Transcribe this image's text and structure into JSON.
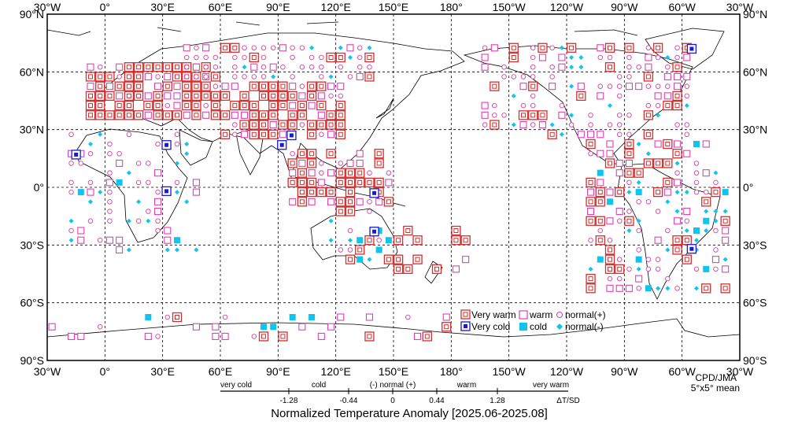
{
  "top_axis_labels": [
    "30°W",
    "0°",
    "30°E",
    "60°E",
    "90°E",
    "120°E",
    "150°E",
    "180°",
    "150°W",
    "120°W",
    "90°W",
    "60°W",
    "30°W"
  ],
  "bottom_axis_labels": [
    "30°W",
    "0°",
    "30°E",
    "60°E",
    "90°E",
    "120°E",
    "150°E",
    "180°",
    "150°W",
    "120°W",
    "90°W",
    "60°W",
    "30°W"
  ],
  "left_axis_labels": [
    "90°N",
    "60°N",
    "30°N",
    "0°",
    "30°S",
    "60°S",
    "90°S"
  ],
  "right_axis_labels": [
    "90°N",
    "60°N",
    "30°N",
    "0°",
    "30°S",
    "60°S",
    "90°S"
  ],
  "legend": {
    "very_warm": "Very warm",
    "warm": "warm",
    "normal_plus": "normal(+)",
    "very_cold": "Very cold",
    "cold": "cold",
    "normal_minus": "normal(-)"
  },
  "credit": {
    "line1": "CPD/JMA",
    "line2": "5°x5° mean"
  },
  "scale": {
    "categories": [
      "very cold",
      "cold",
      "(-) normal (+)",
      "warm",
      "very warm"
    ],
    "thresholds": [
      "-1.28",
      "-0.44",
      "0",
      "0.44",
      "1.28"
    ],
    "unit": "ΔT/SD"
  },
  "title": "Normalized Temperature Anomaly [2025.06-2025.08]",
  "colors": {
    "very_warm": "#d42e2e",
    "warm": "#e040b8",
    "normal_plus": "#d8409a",
    "very_cold": "#1a1ad0",
    "cold": "#10c4ee",
    "normal_minus": "#10c4ee"
  }
}
